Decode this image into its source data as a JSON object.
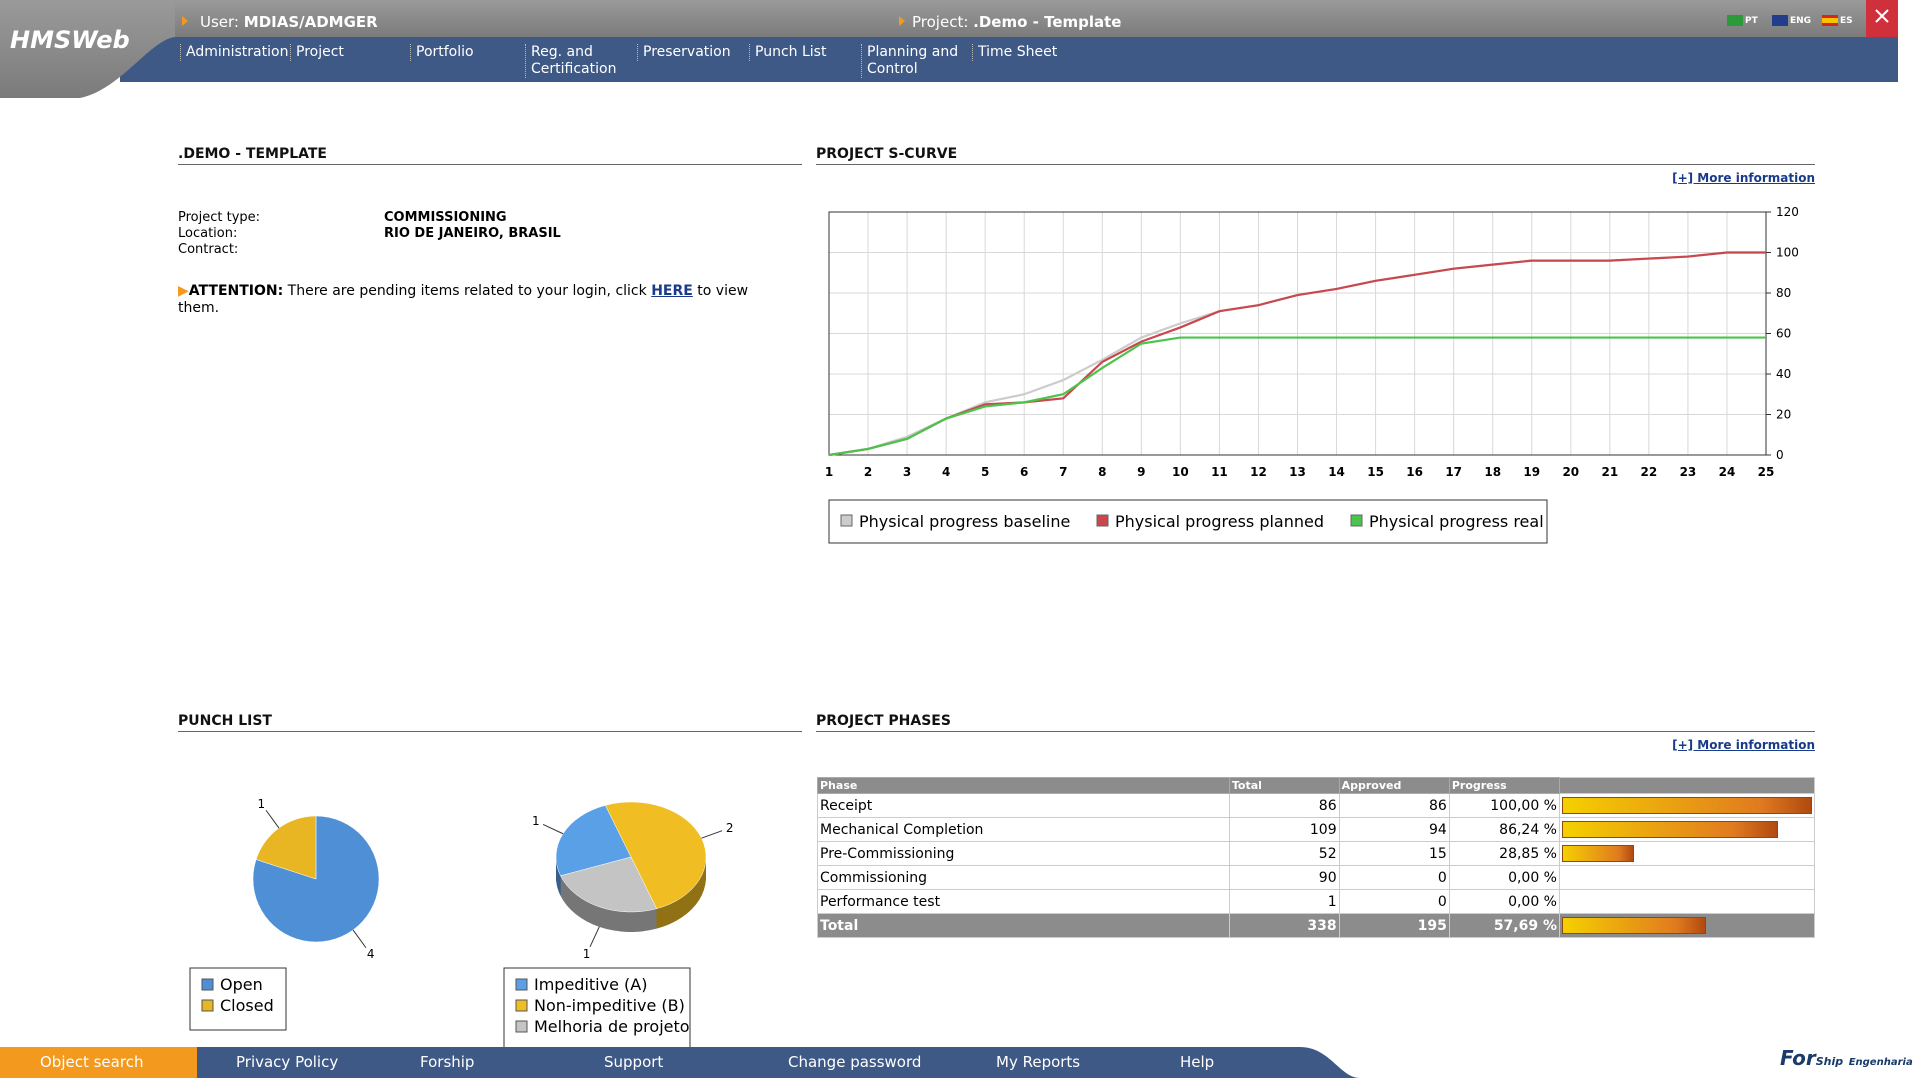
{
  "header": {
    "logo": "HMSWeb",
    "user_label": "User:",
    "user": "MDIAS/ADMGER",
    "project_label": "Project:",
    "project": ".Demo - Template",
    "languages": [
      "PT",
      "ENG",
      "ES"
    ]
  },
  "nav": [
    "Administration",
    "Project",
    "Portfolio",
    "Reg. and Certification",
    "Preservation",
    "Punch List",
    "Planning and Control",
    "Time Sheet"
  ],
  "info": {
    "title": ".DEMO - TEMPLATE",
    "fields": [
      {
        "label": "Project type:",
        "value": "COMMISSIONING"
      },
      {
        "label": "Location:",
        "value": "RIO DE JANEIRO, BRASIL"
      },
      {
        "label": "Contract:"
      }
    ],
    "attention": {
      "label": "ATTENTION:",
      "text": "There are pending items related to your login, click",
      "link": "HERE",
      "text_end": "to view them."
    }
  },
  "s_curve": {
    "type": "line",
    "title": "PROJECT S-CURVE",
    "more": "[+] More information",
    "x": [
      1,
      2,
      3,
      4,
      5,
      6,
      7,
      8,
      9,
      10,
      11,
      12,
      13,
      14,
      15,
      16,
      17,
      18,
      19,
      20,
      21,
      22,
      23,
      24,
      25
    ],
    "xlim": [
      1,
      25
    ],
    "xticks": [
      1,
      2,
      3,
      4,
      5,
      6,
      7,
      8,
      9,
      10,
      11,
      12,
      13,
      14,
      15,
      16,
      17,
      18,
      19,
      20,
      21,
      22,
      23,
      24,
      25
    ],
    "ylim": [
      0,
      120
    ],
    "yticks": [
      0,
      20,
      40,
      60,
      80,
      100,
      120
    ],
    "grid": true,
    "series": [
      {
        "name": "Physical progress baseline",
        "color": "#cccccc",
        "values": [
          0,
          3,
          9,
          18,
          26,
          30,
          37,
          47,
          58,
          65,
          71,
          74,
          79,
          82,
          86,
          89,
          92,
          94,
          96,
          96,
          96,
          97,
          98,
          100,
          100
        ]
      },
      {
        "name": "Physical progress planned",
        "color": "#c8484e",
        "values": [
          0,
          3,
          8,
          18,
          25,
          26,
          28,
          46,
          56,
          63,
          71,
          74,
          79,
          82,
          86,
          89,
          92,
          94,
          96,
          96,
          96,
          97,
          98,
          100,
          100
        ]
      },
      {
        "name": "Physical progress real",
        "color": "#4cc44c",
        "values": [
          0,
          3,
          8,
          18,
          24,
          26,
          30,
          43,
          55,
          58,
          58,
          58,
          58,
          58,
          58,
          58,
          58,
          58,
          58,
          58,
          58,
          58,
          58,
          58,
          58
        ]
      }
    ]
  },
  "punch_list": {
    "title": "PUNCH LIST",
    "charts": [
      {
        "type": "pie",
        "categories": [
          "Open",
          "Closed"
        ],
        "values": [
          4,
          1
        ],
        "colors": [
          "#4f8fd6",
          "#e8b523"
        ]
      },
      {
        "type": "pie",
        "categories": [
          "Impeditive (A)",
          "Non-impeditive (B)",
          "Melhoria de projeto"
        ],
        "values": [
          1,
          2,
          1
        ],
        "colors": [
          "#5aa0e6",
          "#f0bd22",
          "#c4c4c4"
        ]
      }
    ]
  },
  "phases": {
    "title": "PROJECT PHASES",
    "more": "[+] More information",
    "columns": [
      "Phase",
      "Total",
      "Approved",
      "Progress"
    ],
    "rows": [
      {
        "phase": "Receipt",
        "total": 86,
        "approved": 86,
        "progress": 100,
        "progress_label": "100,00 %"
      },
      {
        "phase": "Mechanical Completion",
        "total": 109,
        "approved": 94,
        "progress": 86.24,
        "progress_label": "86,24 %"
      },
      {
        "phase": "Pre-Commissioning",
        "total": 52,
        "approved": 15,
        "progress": 28.85,
        "progress_label": "28,85 %"
      },
      {
        "phase": "Commissioning",
        "total": 90,
        "approved": 0,
        "progress": 0,
        "progress_label": "0,00 %"
      },
      {
        "phase": "Performance test",
        "total": 1,
        "approved": 0,
        "progress": 0,
        "progress_label": "0,00 %"
      }
    ],
    "total": {
      "phase": "Total",
      "total": 338,
      "approved": 195,
      "progress": 57.69,
      "progress_label": "57,69 %"
    }
  },
  "footer": {
    "items": [
      "Object search",
      "Privacy Policy",
      "Forship",
      "Support",
      "Change password",
      "My Reports",
      "Help"
    ],
    "brand": "For",
    "brand_sub": "Ship",
    "brand_tag": "Engenharia"
  }
}
